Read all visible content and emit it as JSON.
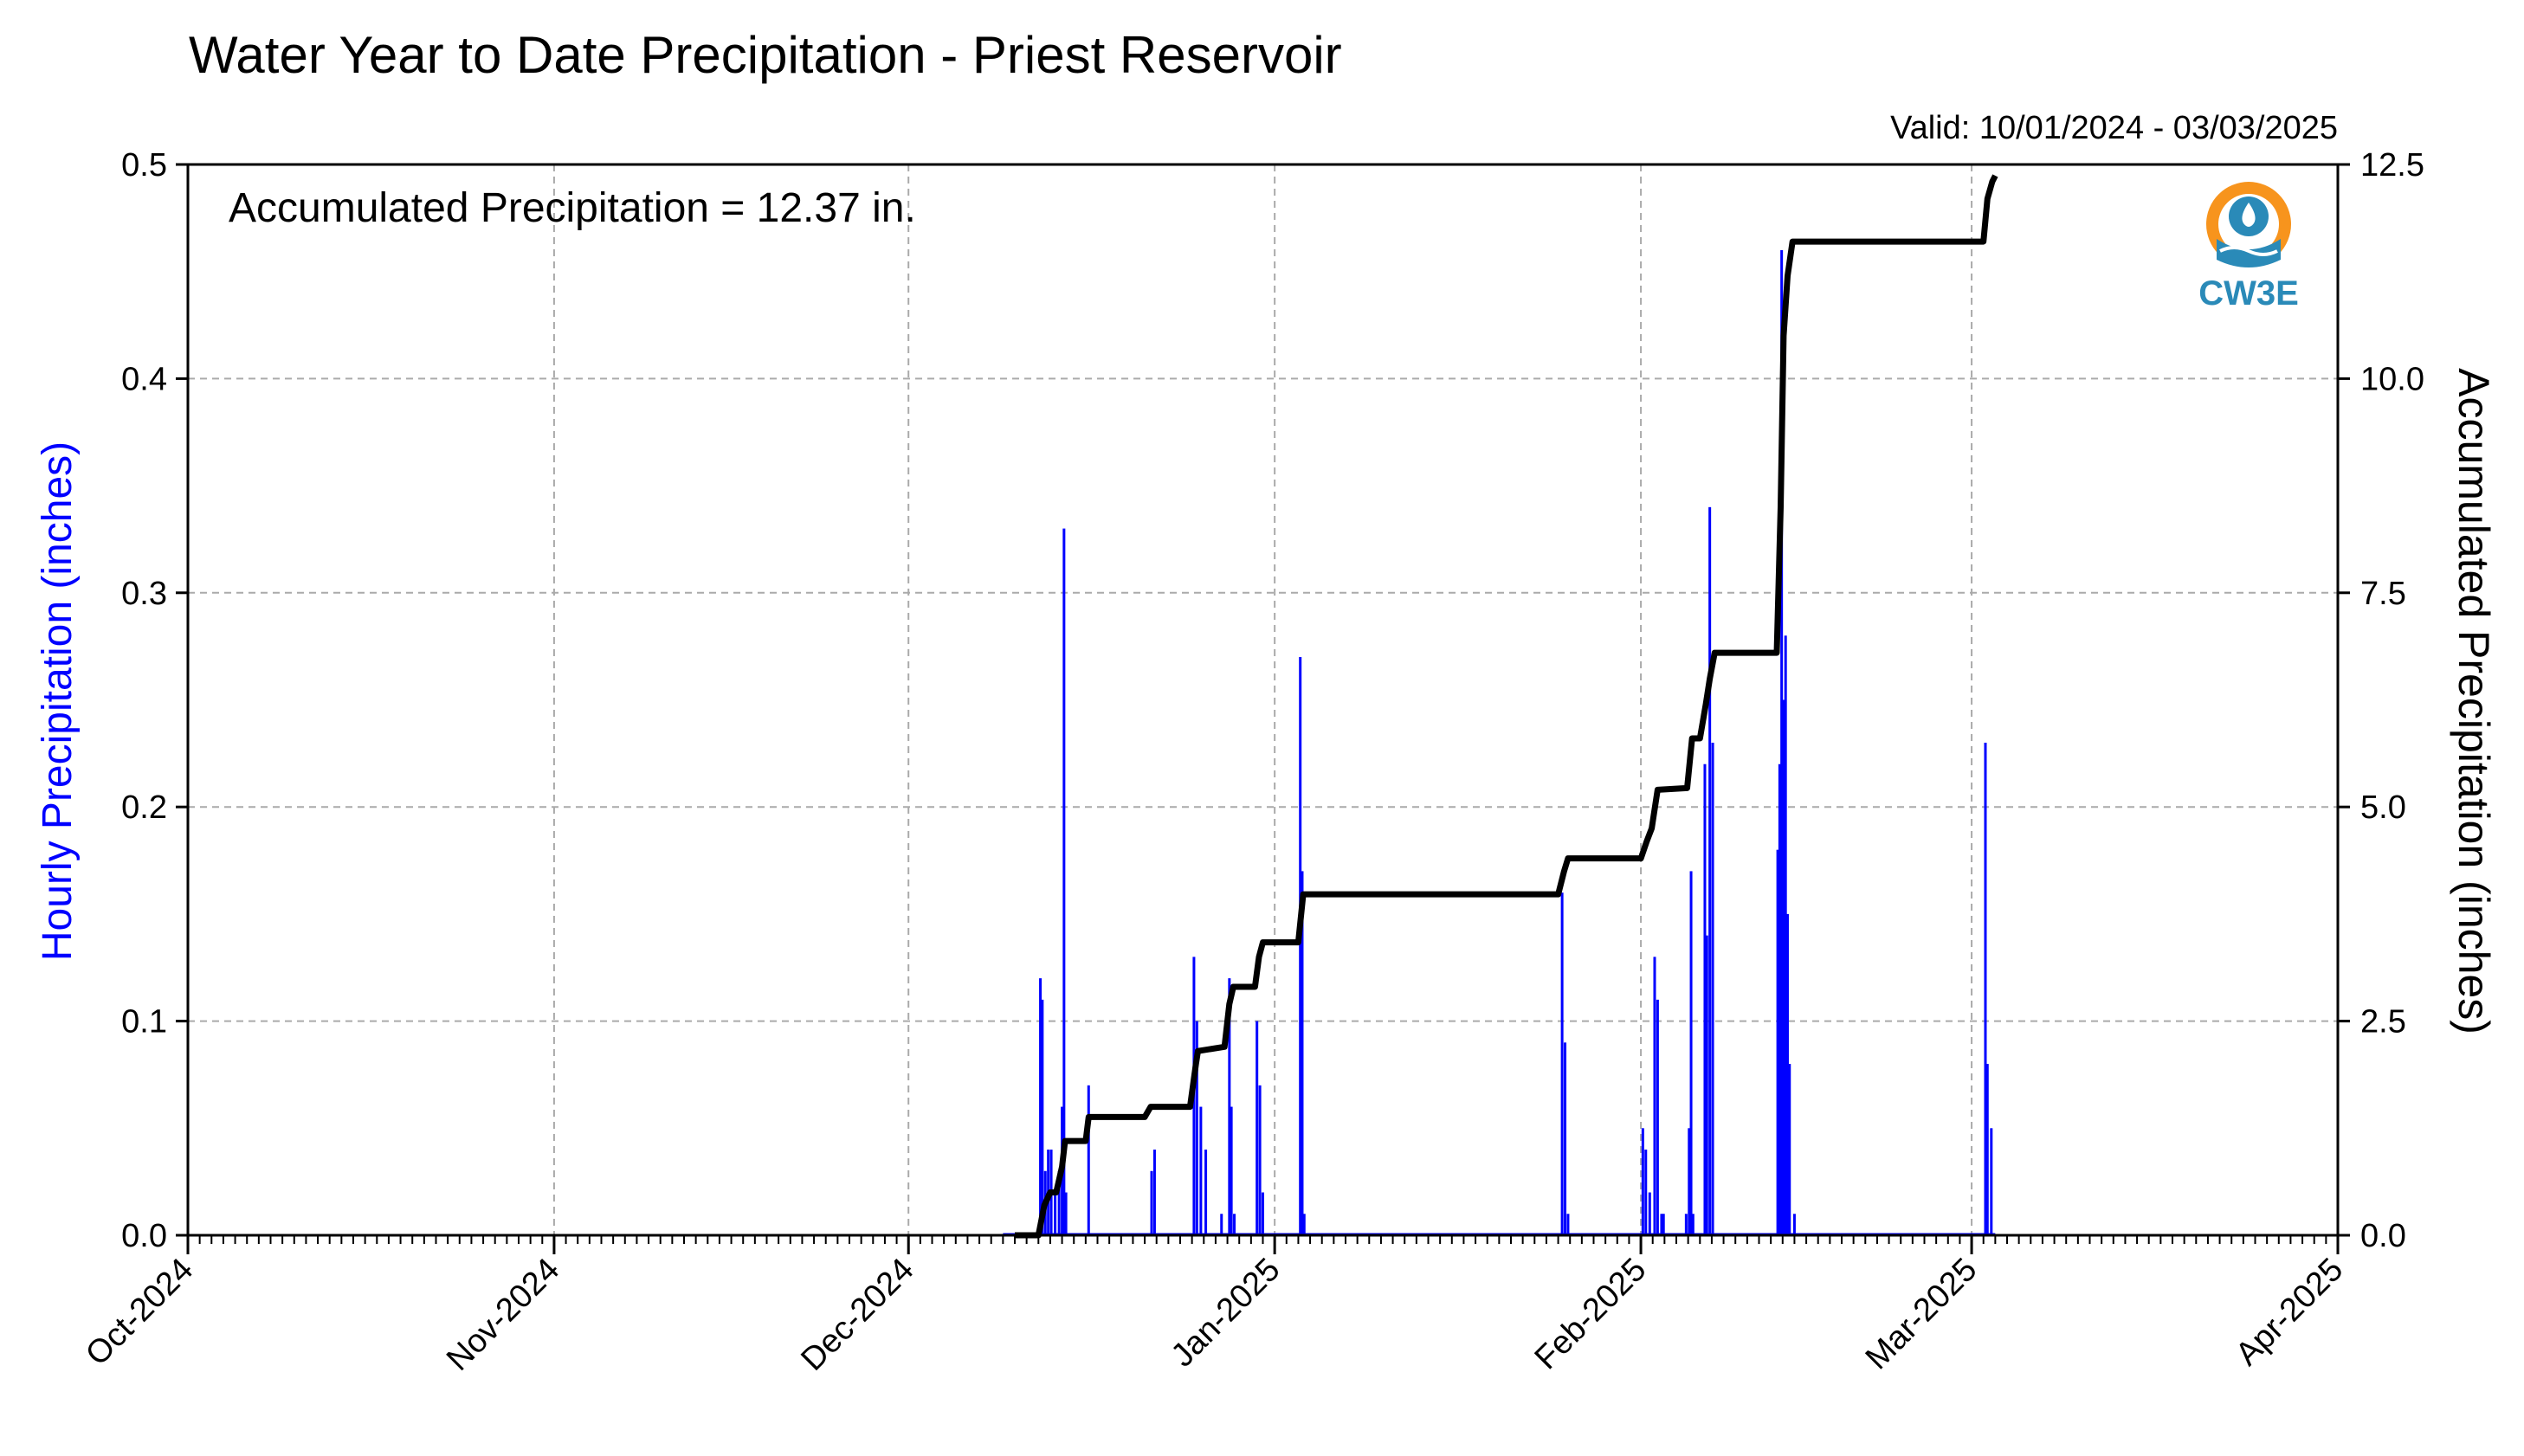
{
  "header": {
    "title": "Water Year to Date Precipitation - Priest Reservoir",
    "valid": "Valid: 10/01/2024 - 03/03/2025"
  },
  "annotation": "Accumulated Precipitation = 12.37 in.",
  "logo": {
    "text": "CW3E",
    "icon": "cw3e-water-drop-logo"
  },
  "colors": {
    "hourly": "#0000ff",
    "accumulated": "#000000",
    "logo_ring": "#f7941d",
    "logo_blue": "#2a8ab8",
    "grid": "#aaaaaa"
  },
  "chart_data": {
    "type": "bar",
    "title": "Water Year to Date Precipitation - Priest Reservoir",
    "xlabel": "",
    "ylabel": "Hourly Precipitation (inches)",
    "ylabel_right": "Accumulated Precipitation (inches)",
    "xlim": [
      "2024-10-01",
      "2025-04-01"
    ],
    "ylim": [
      0,
      0.5
    ],
    "ylim_right": [
      0,
      12.5
    ],
    "x_ticks": [
      "Oct-2024",
      "Nov-2024",
      "Dec-2024",
      "Jan-2025",
      "Feb-2025",
      "Mar-2025",
      "Apr-2025"
    ],
    "y_ticks": [
      "0.0",
      "0.1",
      "0.2",
      "0.3",
      "0.4",
      "0.5"
    ],
    "y_ticks_right": [
      "0.0",
      "2.5",
      "5.0",
      "7.5",
      "10.0",
      "12.5"
    ],
    "grid": true,
    "series": [
      {
        "name": "Hourly Precipitation",
        "axis": "left",
        "type": "bar",
        "points": [
          [
            "2024-12-12 04:00",
            0.12
          ],
          [
            "2024-12-12 08:00",
            0.11
          ],
          [
            "2024-12-12 14:00",
            0.03
          ],
          [
            "2024-12-12 20:00",
            0.04
          ],
          [
            "2024-12-13 02:00",
            0.04
          ],
          [
            "2024-12-13 10:00",
            0.02
          ],
          [
            "2024-12-13 18:00",
            0.03
          ],
          [
            "2024-12-14 00:00",
            0.06
          ],
          [
            "2024-12-14 04:00",
            0.33
          ],
          [
            "2024-12-14 08:00",
            0.02
          ],
          [
            "2024-12-16 06:00",
            0.07
          ],
          [
            "2024-12-21 14:00",
            0.03
          ],
          [
            "2024-12-21 20:00",
            0.04
          ],
          [
            "2024-12-25 04:00",
            0.13
          ],
          [
            "2024-12-25 10:00",
            0.1
          ],
          [
            "2024-12-25 18:00",
            0.06
          ],
          [
            "2024-12-26 04:00",
            0.04
          ],
          [
            "2024-12-27 12:00",
            0.01
          ],
          [
            "2024-12-28 04:00",
            0.12
          ],
          [
            "2024-12-28 08:00",
            0.06
          ],
          [
            "2024-12-28 14:00",
            0.01
          ],
          [
            "2024-12-30 12:00",
            0.1
          ],
          [
            "2024-12-30 18:00",
            0.07
          ],
          [
            "2024-12-31 00:00",
            0.02
          ],
          [
            "2025-01-03 04:00",
            0.27
          ],
          [
            "2025-01-03 08:00",
            0.17
          ],
          [
            "2025-01-03 12:00",
            0.01
          ],
          [
            "2025-01-25 08:00",
            0.16
          ],
          [
            "2025-01-25 14:00",
            0.09
          ],
          [
            "2025-01-25 20:00",
            0.01
          ],
          [
            "2025-02-01 04:00",
            0.05
          ],
          [
            "2025-02-01 10:00",
            0.04
          ],
          [
            "2025-02-01 18:00",
            0.02
          ],
          [
            "2025-02-02 04:00",
            0.13
          ],
          [
            "2025-02-02 10:00",
            0.11
          ],
          [
            "2025-02-02 18:00",
            0.01
          ],
          [
            "2025-02-02 22:00",
            0.01
          ],
          [
            "2025-02-04 20:00",
            0.01
          ],
          [
            "2025-02-05 02:00",
            0.05
          ],
          [
            "2025-02-05 06:00",
            0.17
          ],
          [
            "2025-02-05 10:00",
            0.01
          ],
          [
            "2025-02-06 10:00",
            0.22
          ],
          [
            "2025-02-06 14:00",
            0.14
          ],
          [
            "2025-02-06 20:00",
            0.34
          ],
          [
            "2025-02-07 02:00",
            0.23
          ],
          [
            "2025-02-12 14:00",
            0.18
          ],
          [
            "2025-02-12 18:00",
            0.22
          ],
          [
            "2025-02-12 22:00",
            0.46
          ],
          [
            "2025-02-13 02:00",
            0.25
          ],
          [
            "2025-02-13 06:00",
            0.28
          ],
          [
            "2025-02-13 10:00",
            0.15
          ],
          [
            "2025-02-13 14:00",
            0.08
          ],
          [
            "2025-02-14 00:00",
            0.01
          ],
          [
            "2025-03-02 04:00",
            0.23
          ],
          [
            "2025-03-02 08:00",
            0.08
          ],
          [
            "2025-03-02 16:00",
            0.05
          ]
        ]
      },
      {
        "name": "Accumulated Precipitation",
        "axis": "right",
        "type": "line",
        "points": [
          [
            "2024-12-10 00:00",
            0.0
          ],
          [
            "2024-12-12 00:00",
            0.0
          ],
          [
            "2024-12-12 12:00",
            0.35
          ],
          [
            "2024-12-13 00:00",
            0.5
          ],
          [
            "2024-12-13 12:00",
            0.5
          ],
          [
            "2024-12-14 00:00",
            0.8
          ],
          [
            "2024-12-14 06:00",
            1.1
          ],
          [
            "2024-12-16 00:00",
            1.1
          ],
          [
            "2024-12-16 06:00",
            1.38
          ],
          [
            "2024-12-21 00:00",
            1.38
          ],
          [
            "2024-12-21 12:00",
            1.5
          ],
          [
            "2024-12-24 20:00",
            1.5
          ],
          [
            "2024-12-25 08:00",
            2.0
          ],
          [
            "2024-12-25 12:00",
            2.15
          ],
          [
            "2024-12-27 18:00",
            2.2
          ],
          [
            "2024-12-28 04:00",
            2.7
          ],
          [
            "2024-12-28 12:00",
            2.9
          ],
          [
            "2024-12-30 08:00",
            2.9
          ],
          [
            "2024-12-30 16:00",
            3.25
          ],
          [
            "2024-12-31 00:00",
            3.42
          ],
          [
            "2025-01-03 00:00",
            3.42
          ],
          [
            "2025-01-03 10:00",
            3.98
          ],
          [
            "2025-01-25 00:00",
            3.98
          ],
          [
            "2025-01-25 12:00",
            4.25
          ],
          [
            "2025-01-25 20:00",
            4.4
          ],
          [
            "2025-02-01 00:00",
            4.4
          ],
          [
            "2025-02-01 12:00",
            4.6
          ],
          [
            "2025-02-01 22:00",
            4.75
          ],
          [
            "2025-02-02 10:00",
            5.2
          ],
          [
            "2025-02-04 22:00",
            5.22
          ],
          [
            "2025-02-05 08:00",
            5.8
          ],
          [
            "2025-02-06 00:00",
            5.8
          ],
          [
            "2025-02-06 12:00",
            6.2
          ],
          [
            "2025-02-06 20:00",
            6.5
          ],
          [
            "2025-02-07 06:00",
            6.8
          ],
          [
            "2025-02-12 12:00",
            6.8
          ],
          [
            "2025-02-12 20:00",
            8.5
          ],
          [
            "2025-02-13 02:00",
            10.5
          ],
          [
            "2025-02-13 10:00",
            11.2
          ],
          [
            "2025-02-13 20:00",
            11.6
          ],
          [
            "2025-03-02 00:00",
            11.6
          ],
          [
            "2025-03-02 08:00",
            12.1
          ],
          [
            "2025-03-02 18:00",
            12.3
          ],
          [
            "2025-03-03 00:00",
            12.37
          ]
        ]
      }
    ]
  }
}
